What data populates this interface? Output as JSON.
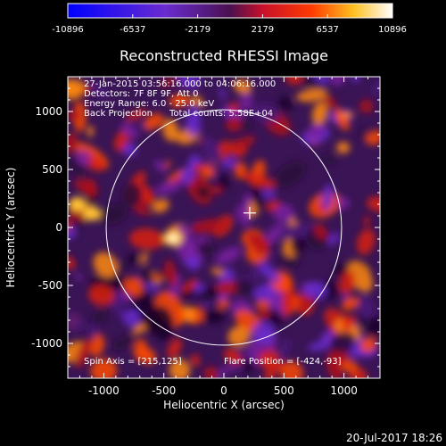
{
  "colorbar": {
    "tick_labels": [
      "-10896",
      "-6537",
      "-2179",
      "2179",
      "6537",
      "10896"
    ],
    "range": [
      -10896,
      10896
    ],
    "colormap": "blue-purple-red-yellow-white"
  },
  "plot": {
    "title": "Reconstructed RHESSI Image",
    "annotation_lines": [
      "27-Jan-2015 03:56:16.000 to 04:06:16.000",
      "Detectors: 7F 8F 9F, Att 0",
      "Energy Range: 6.0 - 25.0 keV",
      "Back Projection      Total counts: 5.58E+04"
    ],
    "spin_axis": "Spin Axis = [215,125]",
    "flare_position": "Flare Position = [-424,-93]",
    "xlabel": "Heliocentric X (arcsec)",
    "ylabel": "Heliocentric Y (arcsec)",
    "xticks": [
      "-1000",
      "-500",
      "0",
      "500",
      "1000"
    ],
    "yticks": [
      "1000",
      "500",
      "0",
      "-500",
      "-1000"
    ],
    "x_range": [
      -1300,
      1300
    ],
    "y_range": [
      -1300,
      1300
    ],
    "solar_limb_radius_arcsec": 980,
    "cross_marker_arcsec": [
      215,
      125
    ],
    "bright_source_arcsec": [
      -424,
      -93
    ]
  },
  "timestamp": "20-Jul-2017 18:26"
}
